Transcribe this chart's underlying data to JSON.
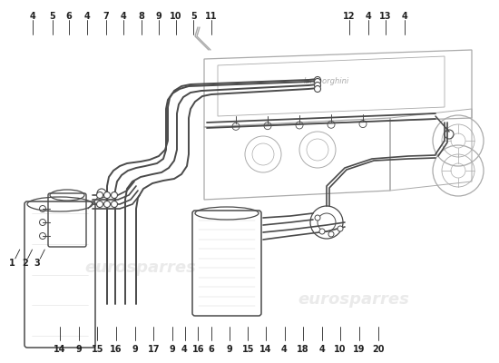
{
  "bg_color": "#ffffff",
  "line_color": "#4a4a4a",
  "light_color": "#aaaaaa",
  "very_light": "#cccccc",
  "label_color": "#222222",
  "watermark_color": "#e8e8e8",
  "top_labels": [
    [
      "4",
      0.065
    ],
    [
      "5",
      0.105
    ],
    [
      "6",
      0.138
    ],
    [
      "4",
      0.175
    ],
    [
      "7",
      0.213
    ],
    [
      "4",
      0.248
    ],
    [
      "8",
      0.283
    ],
    [
      "9",
      0.318
    ],
    [
      "10",
      0.353
    ],
    [
      "5",
      0.388
    ],
    [
      "11",
      0.423
    ]
  ],
  "top_right_labels": [
    [
      "12",
      0.7
    ],
    [
      "4",
      0.738
    ],
    [
      "13",
      0.773
    ],
    [
      "4",
      0.81
    ]
  ],
  "left_labels": [
    [
      "1",
      0.025
    ],
    [
      "2",
      0.05
    ],
    [
      "3",
      0.075
    ]
  ],
  "bottom_labels": [
    [
      "14",
      0.12
    ],
    [
      "9",
      0.158
    ],
    [
      "15",
      0.195
    ],
    [
      "16",
      0.232
    ],
    [
      "9",
      0.27
    ],
    [
      "17",
      0.308
    ],
    [
      "9",
      0.345
    ],
    [
      "4",
      0.37
    ],
    [
      "16",
      0.397
    ],
    [
      "6",
      0.423
    ],
    [
      "9",
      0.46
    ],
    [
      "15",
      0.497
    ],
    [
      "14",
      0.533
    ],
    [
      "4",
      0.57
    ],
    [
      "18",
      0.607
    ],
    [
      "4",
      0.645
    ],
    [
      "10",
      0.682
    ],
    [
      "19",
      0.72
    ],
    [
      "20",
      0.758
    ]
  ]
}
